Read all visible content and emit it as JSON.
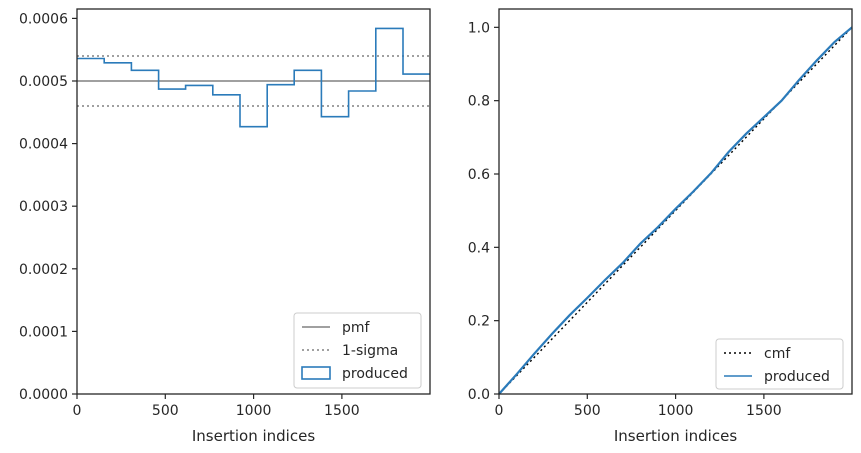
{
  "chart_data": [
    {
      "type": "line",
      "xlabel": "Insertion indices",
      "ylabel": "",
      "xlim": [
        0,
        1999
      ],
      "ylim": [
        0,
        0.000615
      ],
      "xticks": [
        0,
        500,
        1000,
        1500
      ],
      "xtick_labels": [
        "0",
        "500",
        "1000",
        "1500"
      ],
      "yticks": [
        0,
        0.0001,
        0.0002,
        0.0003,
        0.0004,
        0.0005,
        0.0006
      ],
      "ytick_labels": [
        "0.0000",
        "0.0001",
        "0.0002",
        "0.0003",
        "0.0004",
        "0.0005",
        "0.0006"
      ],
      "legend_placement": "lower-right",
      "series": [
        {
          "name": "pmf",
          "style": "solid",
          "color": "#808080",
          "x": [
            0,
            1999
          ],
          "y": [
            0.0005,
            0.0005
          ]
        },
        {
          "name": "1-sigma",
          "style": "dotted",
          "color": "#808080",
          "x": [
            0,
            1999
          ],
          "y": [
            0.00054,
            0.00054
          ]
        },
        {
          "name": "1-sigma",
          "style": "dotted",
          "color": "#808080",
          "x": [
            0,
            1999
          ],
          "y": [
            0.00046,
            0.00046
          ],
          "legend": false
        },
        {
          "name": "produced",
          "style": "step",
          "color": "#2b7bba",
          "bin_edges": [
            0,
            154,
            308,
            462,
            615,
            769,
            923,
            1077,
            1230,
            1384,
            1538,
            1692,
            1846,
            1999
          ],
          "values": [
            0.000536,
            0.000529,
            0.000517,
            0.000487,
            0.000493,
            0.000478,
            0.000427,
            0.000494,
            0.000517,
            0.000443,
            0.000484,
            0.000584,
            0.000511
          ]
        }
      ]
    },
    {
      "type": "line",
      "xlabel": "Insertion indices",
      "ylabel": "",
      "xlim": [
        0,
        1999
      ],
      "ylim": [
        0,
        1.05
      ],
      "xticks": [
        0,
        500,
        1000,
        1500
      ],
      "xtick_labels": [
        "0",
        "500",
        "1000",
        "1500"
      ],
      "yticks": [
        0,
        0.2,
        0.4,
        0.6,
        0.8,
        1.0
      ],
      "ytick_labels": [
        "0.0",
        "0.2",
        "0.4",
        "0.6",
        "0.8",
        "1.0"
      ],
      "legend_placement": "lower-right",
      "series": [
        {
          "name": "cmf",
          "style": "dotted",
          "color": "#000000",
          "x": [
            0,
            1999
          ],
          "y": [
            0,
            1
          ]
        },
        {
          "name": "produced",
          "style": "solid",
          "color": "#2b7bba",
          "x": [
            0,
            100,
            200,
            300,
            400,
            500,
            600,
            700,
            800,
            900,
            1000,
            1100,
            1200,
            1300,
            1400,
            1500,
            1600,
            1700,
            1800,
            1900,
            1999
          ],
          "y": [
            0,
            0.054,
            0.11,
            0.164,
            0.215,
            0.262,
            0.311,
            0.357,
            0.41,
            0.455,
            0.505,
            0.552,
            0.602,
            0.66,
            0.71,
            0.755,
            0.8,
            0.857,
            0.91,
            0.96,
            1.0
          ]
        }
      ]
    }
  ]
}
